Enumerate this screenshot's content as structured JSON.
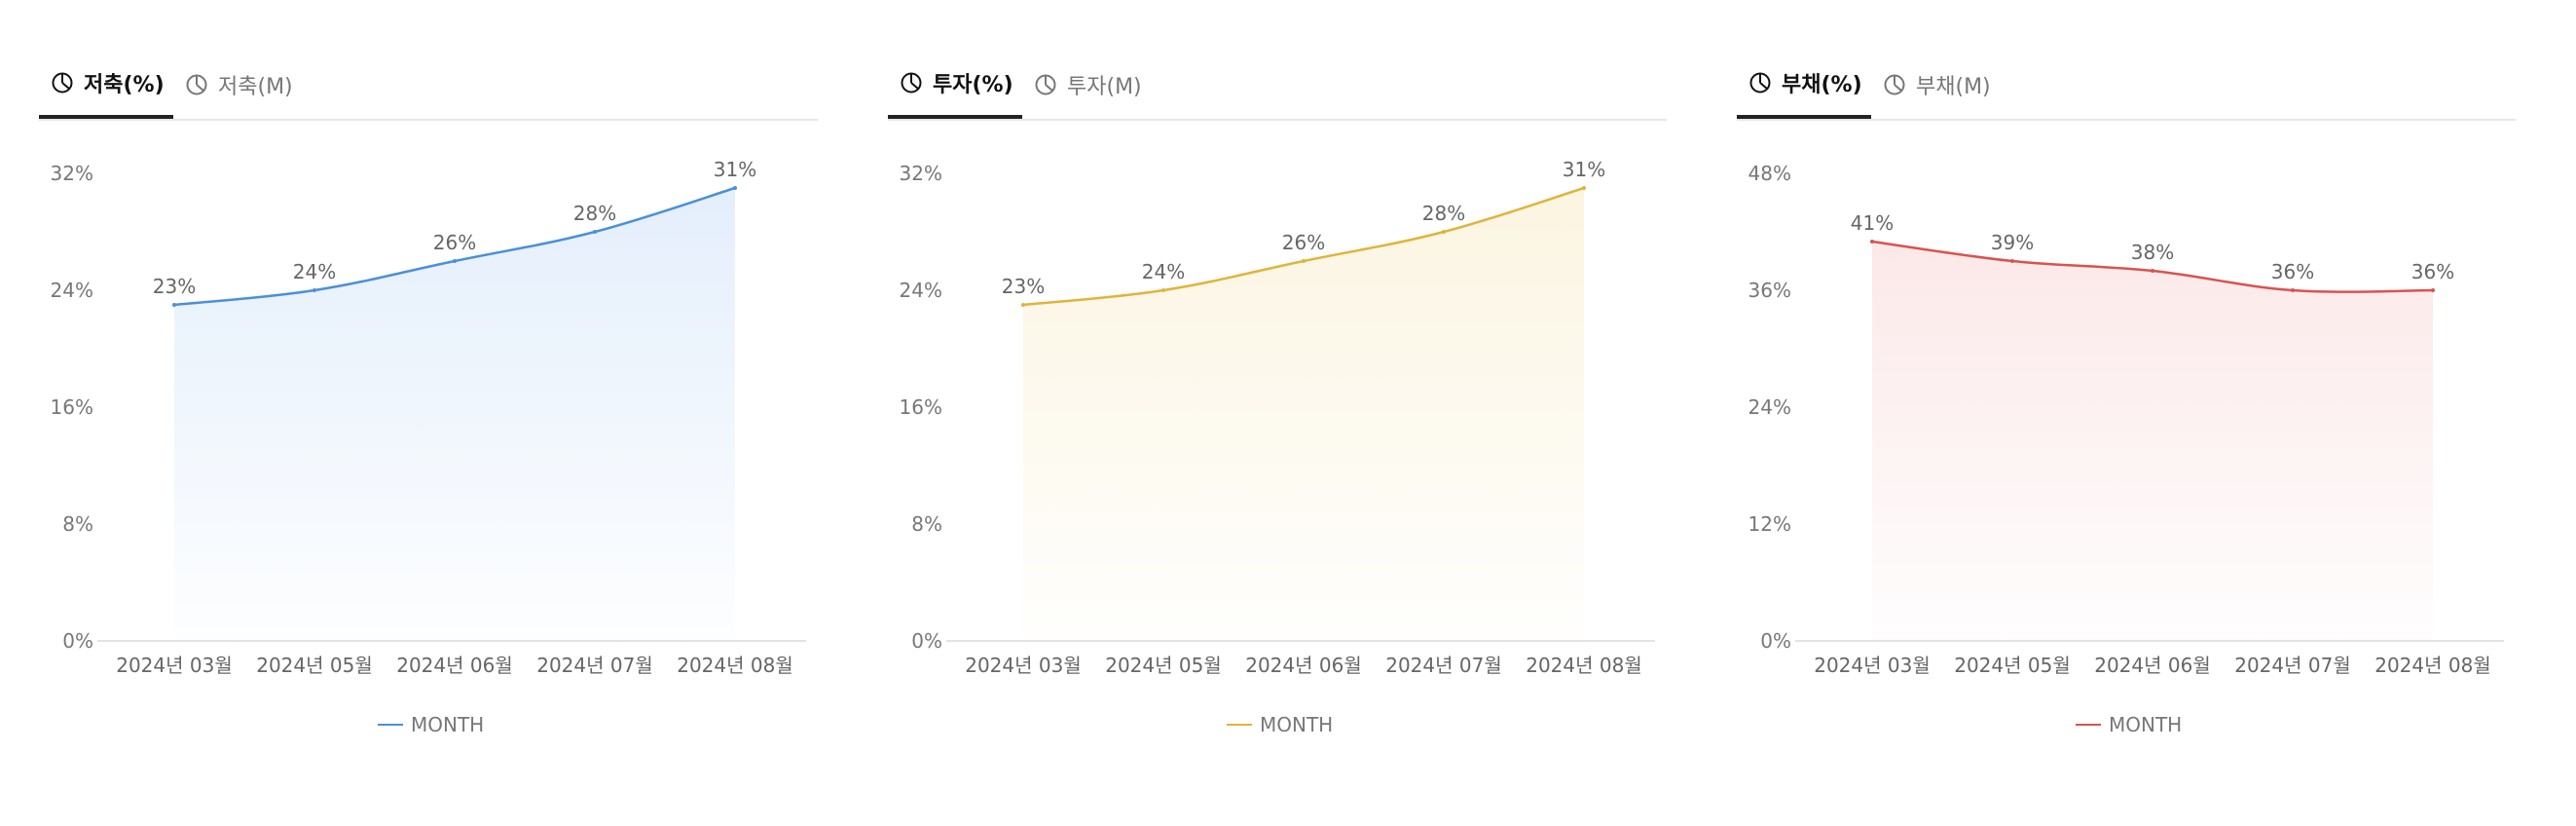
{
  "panels": [
    {
      "tabs": [
        {
          "label": "저축(%)",
          "active": true
        },
        {
          "label": "저축(M)",
          "active": false
        }
      ],
      "color": "#4a90d9",
      "fill": "#dbe9fa",
      "legend": "MONTH"
    },
    {
      "tabs": [
        {
          "label": "투자(%)",
          "active": true
        },
        {
          "label": "투자(M)",
          "active": false
        }
      ],
      "color": "#e0b43a",
      "fill": "#faf1d7",
      "legend": "MONTH"
    },
    {
      "tabs": [
        {
          "label": "부채(%)",
          "active": true
        },
        {
          "label": "부채(M)",
          "active": false
        }
      ],
      "color": "#d9534f",
      "fill": "#fae1e1",
      "legend": "MONTH"
    }
  ],
  "chart_data": [
    {
      "type": "area",
      "categories": [
        "2024년 03월",
        "2024년 05월",
        "2024년 06월",
        "2024년 07월",
        "2024년 08월"
      ],
      "series": [
        {
          "name": "MONTH",
          "values": [
            23,
            24,
            26,
            28,
            31
          ],
          "labels": [
            "23%",
            "24%",
            "26%",
            "28%",
            "31%"
          ]
        }
      ],
      "ylim": [
        0,
        32
      ],
      "yticks": [
        "0%",
        "8%",
        "16%",
        "24%",
        "32%"
      ],
      "legend": "bottom-center"
    },
    {
      "type": "area",
      "categories": [
        "2024년 03월",
        "2024년 05월",
        "2024년 06월",
        "2024년 07월",
        "2024년 08월"
      ],
      "series": [
        {
          "name": "MONTH",
          "values": [
            23,
            24,
            26,
            28,
            31
          ],
          "labels": [
            "23%",
            "24%",
            "26%",
            "28%",
            "31%"
          ]
        }
      ],
      "ylim": [
        0,
        32
      ],
      "yticks": [
        "0%",
        "8%",
        "16%",
        "24%",
        "32%"
      ],
      "legend": "bottom-center"
    },
    {
      "type": "area",
      "categories": [
        "2024년 03월",
        "2024년 05월",
        "2024년 06월",
        "2024년 07월",
        "2024년 08월"
      ],
      "series": [
        {
          "name": "MONTH",
          "values": [
            41,
            39,
            38,
            36,
            36
          ],
          "labels": [
            "41%",
            "39%",
            "38%",
            "36%",
            "36%"
          ]
        }
      ],
      "ylim": [
        0,
        48
      ],
      "yticks": [
        "0%",
        "12%",
        "24%",
        "36%",
        "48%"
      ],
      "legend": "bottom-center"
    }
  ]
}
